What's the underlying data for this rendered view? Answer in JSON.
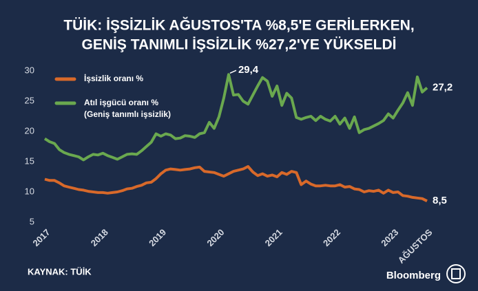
{
  "chart_data": {
    "type": "line",
    "title": "TÜİK: İŞSİZLİK AĞUSTOS'TA %8,5'E GERİLERKEN,",
    "subtitle": "GENİŞ TANIMLI İŞSİZLİK %27,2'YE YÜKSELDİ",
    "source": "KAYNAK: TÜİK",
    "brand": "Bloomberg",
    "categories": [
      "2017",
      null,
      null,
      null,
      null,
      null,
      null,
      null,
      null,
      null,
      null,
      null,
      "2018",
      null,
      null,
      null,
      null,
      null,
      null,
      null,
      null,
      null,
      null,
      null,
      "2019",
      null,
      null,
      null,
      null,
      null,
      null,
      null,
      null,
      null,
      null,
      null,
      "2020",
      null,
      null,
      null,
      null,
      null,
      null,
      null,
      null,
      null,
      null,
      null,
      "2021",
      null,
      null,
      null,
      null,
      null,
      null,
      null,
      null,
      null,
      null,
      null,
      "2022",
      null,
      null,
      null,
      null,
      null,
      null,
      null,
      null,
      null,
      null,
      null,
      "2023",
      null,
      null,
      null,
      null,
      null,
      null,
      "AĞUSTOS"
    ],
    "series": [
      {
        "name": "İşsizlik oranı %",
        "color": "#d8692a",
        "values": [
          12.1,
          11.9,
          11.9,
          11.5,
          11.0,
          10.8,
          10.6,
          10.4,
          10.3,
          10.1,
          10.0,
          9.9,
          9.9,
          9.8,
          9.9,
          10.0,
          10.2,
          10.5,
          10.6,
          10.9,
          11.1,
          11.5,
          11.6,
          12.2,
          13.0,
          13.6,
          13.8,
          13.7,
          13.6,
          13.7,
          13.8,
          14.0,
          14.1,
          13.4,
          13.3,
          13.2,
          12.9,
          12.6,
          13.0,
          13.4,
          13.6,
          13.8,
          14.2,
          13.3,
          12.7,
          13.0,
          12.6,
          12.8,
          12.5,
          13.2,
          12.9,
          13.4,
          13.2,
          11.2,
          11.8,
          11.3,
          11.0,
          11.0,
          11.1,
          11.0,
          11.0,
          11.2,
          10.8,
          10.9,
          10.5,
          10.4,
          10.0,
          10.2,
          10.1,
          10.3,
          9.8,
          10.3,
          9.9,
          10.0,
          9.4,
          9.3,
          9.1,
          9.0,
          8.9,
          8.5
        ],
        "value_labels": [
          null,
          null,
          null,
          null,
          null,
          null,
          null,
          null,
          null,
          null,
          null,
          null,
          null,
          null,
          null,
          null,
          null,
          null,
          null,
          null,
          null,
          null,
          null,
          null,
          null,
          null,
          null,
          null,
          null,
          null,
          null,
          null,
          null,
          null,
          null,
          null,
          null,
          null,
          null,
          null,
          null,
          null,
          null,
          null,
          null,
          null,
          null,
          null,
          null,
          null,
          null,
          null,
          null,
          null,
          null,
          null,
          null,
          null,
          null,
          null,
          null,
          null,
          null,
          null,
          null,
          null,
          null,
          null,
          null,
          null,
          null,
          null,
          null,
          null,
          null,
          null,
          null,
          null,
          null,
          "8,5"
        ]
      },
      {
        "name": "Atıl işgücü oranı %",
        "name_detail": "(Geniş tanımlı işsizlik)",
        "color": "#6aa84f",
        "values": [
          18.8,
          18.3,
          18.0,
          17.0,
          16.5,
          16.2,
          16.0,
          15.8,
          15.3,
          15.8,
          16.2,
          16.1,
          16.4,
          16.0,
          15.7,
          15.4,
          15.8,
          16.2,
          16.3,
          16.2,
          16.8,
          17.5,
          18.2,
          19.6,
          19.2,
          19.6,
          19.4,
          18.8,
          18.9,
          19.3,
          19.2,
          19.0,
          19.6,
          19.8,
          21.5,
          20.5,
          22.4,
          25.5,
          29.4,
          26.0,
          26.1,
          25.0,
          24.5,
          26.0,
          27.5,
          28.9,
          28.3,
          25.8,
          27.5,
          24.3,
          26.3,
          25.5,
          22.3,
          22.0,
          22.3,
          22.5,
          21.8,
          22.5,
          22.0,
          21.7,
          22.5,
          21.2,
          22.2,
          20.5,
          22.4,
          19.8,
          20.3,
          20.5,
          20.9,
          21.3,
          21.8,
          22.9,
          22.2,
          23.5,
          24.7,
          26.4,
          24.3,
          29.0,
          26.5,
          27.2
        ],
        "value_labels": [
          null,
          null,
          null,
          null,
          null,
          null,
          null,
          null,
          null,
          null,
          null,
          null,
          null,
          null,
          null,
          null,
          null,
          null,
          null,
          null,
          null,
          null,
          null,
          null,
          null,
          null,
          null,
          null,
          null,
          null,
          null,
          null,
          null,
          null,
          null,
          null,
          null,
          null,
          "29,4",
          null,
          null,
          null,
          null,
          null,
          null,
          null,
          null,
          null,
          null,
          null,
          null,
          null,
          null,
          null,
          null,
          null,
          null,
          null,
          null,
          null,
          null,
          null,
          null,
          null,
          null,
          null,
          null,
          null,
          null,
          null,
          null,
          null,
          null,
          null,
          null,
          null,
          null,
          null,
          null,
          "27,2"
        ]
      }
    ],
    "ylim": [
      5,
      30
    ],
    "yticks": [
      5,
      10,
      15,
      20,
      25,
      30
    ],
    "grid": false
  }
}
